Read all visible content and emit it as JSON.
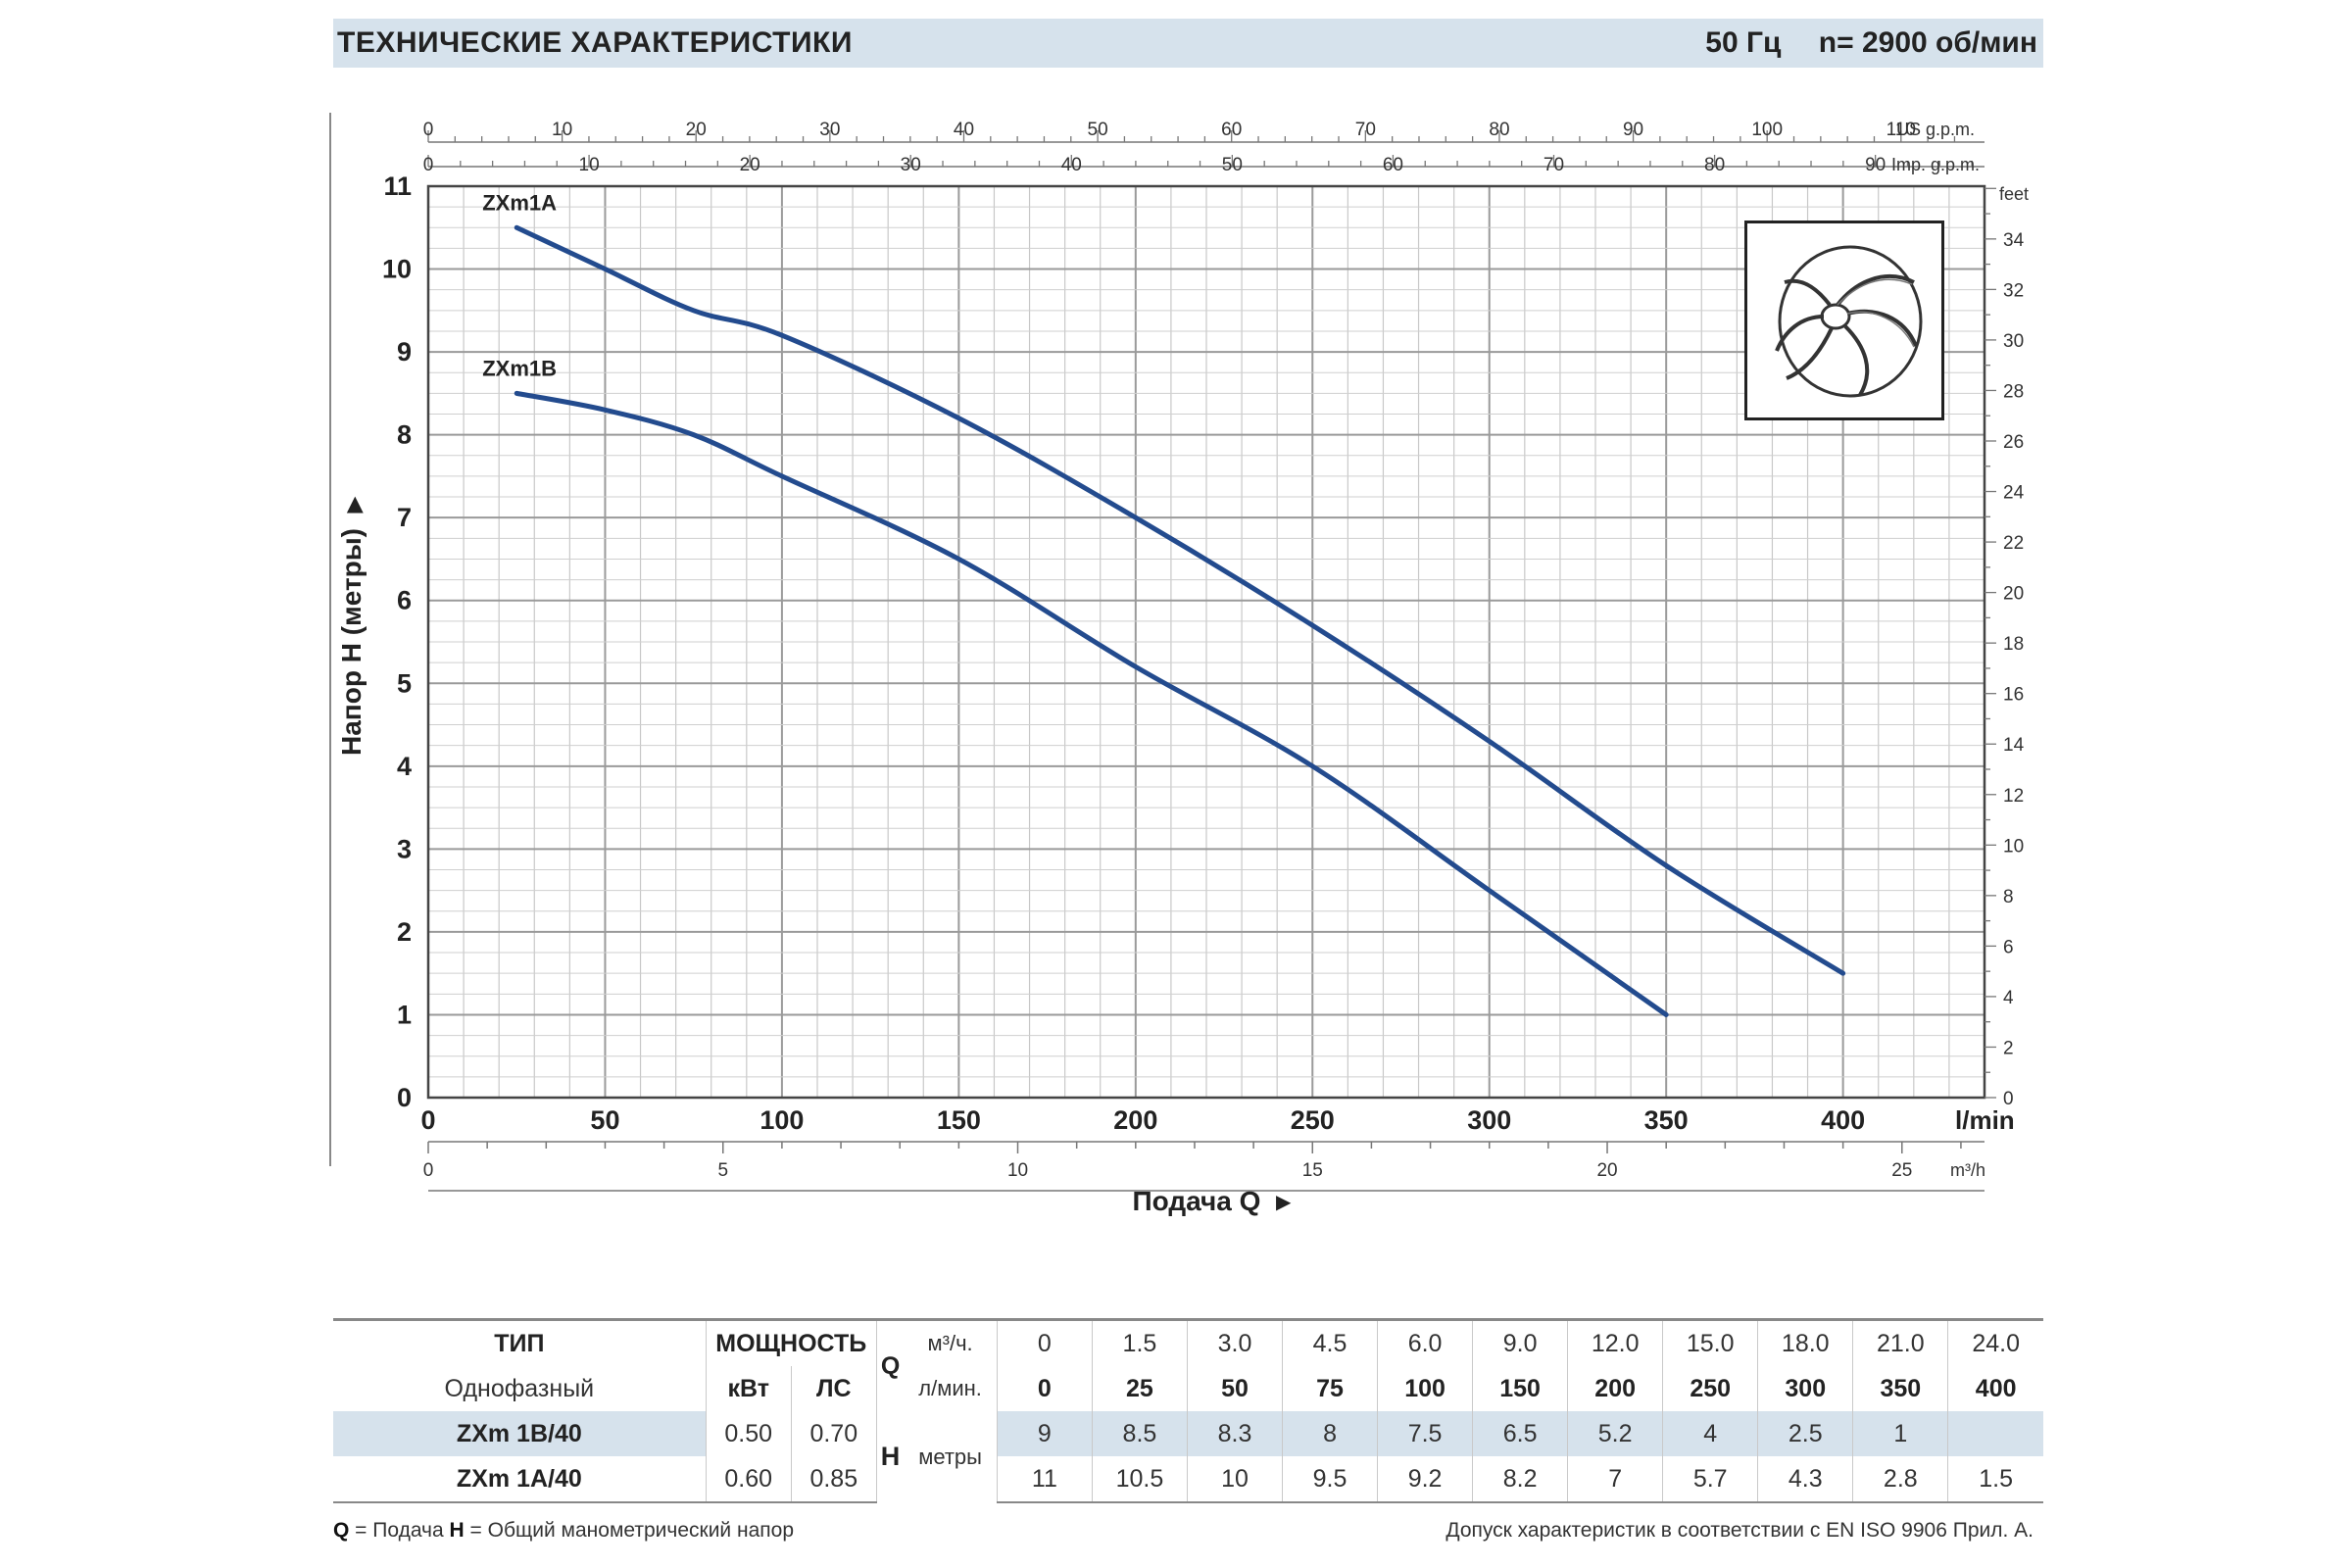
{
  "header": {
    "title": "ТЕХНИЧЕСКИЕ ХАРАКТЕРИСТИКИ",
    "freq": "50 Гц",
    "speed": "n= 2900 об/мин"
  },
  "chart_data": {
    "type": "line",
    "title": "",
    "xlabel": "Подача Q",
    "ylabel": "Напор H (метры)",
    "x_unit": "l/min",
    "xlim": [
      0,
      440
    ],
    "ylim": [
      0,
      11
    ],
    "grid": true,
    "x_ticks": [
      0,
      50,
      100,
      150,
      200,
      250,
      300,
      350,
      400
    ],
    "y_ticks": [
      0,
      1,
      2,
      3,
      4,
      5,
      6,
      7,
      8,
      9,
      10,
      11
    ],
    "right_axis": {
      "label": "feet",
      "ticks": [
        0,
        2,
        4,
        6,
        8,
        10,
        12,
        14,
        16,
        18,
        20,
        22,
        24,
        26,
        28,
        30,
        32,
        34
      ]
    },
    "top_axis_us": {
      "label": "US g.p.m.",
      "ticks": [
        0,
        10,
        20,
        30,
        40,
        50,
        60,
        70,
        80,
        90,
        100,
        110
      ]
    },
    "top_axis_imp": {
      "label": "Imp. g.p.m.",
      "ticks": [
        0,
        10,
        20,
        30,
        40,
        50,
        60,
        70,
        80,
        90
      ]
    },
    "bottom_axis_m3h": {
      "label": "m³/h",
      "ticks": [
        0,
        5,
        10,
        15,
        20,
        25
      ]
    },
    "series": [
      {
        "name": "ZXm1A",
        "color": "#234b8e",
        "x": [
          25,
          50,
          75,
          100,
          150,
          200,
          250,
          300,
          350,
          400
        ],
        "y": [
          10.5,
          10,
          9.5,
          9.2,
          8.2,
          7,
          5.7,
          4.3,
          2.8,
          1.5
        ]
      },
      {
        "name": "ZXm1B",
        "color": "#234b8e",
        "x": [
          25,
          50,
          75,
          100,
          150,
          200,
          250,
          300,
          350
        ],
        "y": [
          8.5,
          8.3,
          8,
          7.5,
          6.5,
          5.2,
          4,
          2.5,
          1
        ]
      }
    ]
  },
  "table": {
    "type_label": "ТИП",
    "phase_label": "Однофазный",
    "power_label": "МОЩНОСТЬ",
    "kw_label": "кВт",
    "hp_label": "ЛС",
    "q_label": "Q",
    "m3h_label": "м³/ч.",
    "lmin_label": "л/мин.",
    "h_label": "H",
    "meters_label": "метры",
    "m3h": [
      "0",
      "1.5",
      "3.0",
      "4.5",
      "6.0",
      "9.0",
      "12.0",
      "15.0",
      "18.0",
      "21.0",
      "24.0"
    ],
    "lmin": [
      "0",
      "25",
      "50",
      "75",
      "100",
      "150",
      "200",
      "250",
      "300",
      "350",
      "400"
    ],
    "rows": [
      {
        "model": "ZXm 1B/40",
        "kw": "0.50",
        "hp": "0.70",
        "h": [
          "9",
          "8.5",
          "8.3",
          "8",
          "7.5",
          "6.5",
          "5.2",
          "4",
          "2.5",
          "1",
          ""
        ]
      },
      {
        "model": "ZXm 1A/40",
        "kw": "0.60",
        "hp": "0.85",
        "h": [
          "11",
          "10.5",
          "10",
          "9.5",
          "9.2",
          "8.2",
          "7",
          "5.7",
          "4.3",
          "2.8",
          "1.5"
        ]
      }
    ]
  },
  "footer": {
    "q_key": "Q",
    "q_def": " = Подача  ",
    "h_key": "H",
    "h_def": " = Общий манометрический напор",
    "tolerance": "Допуск характеристик в соответствии с EN ISO 9906 Прил. A."
  }
}
